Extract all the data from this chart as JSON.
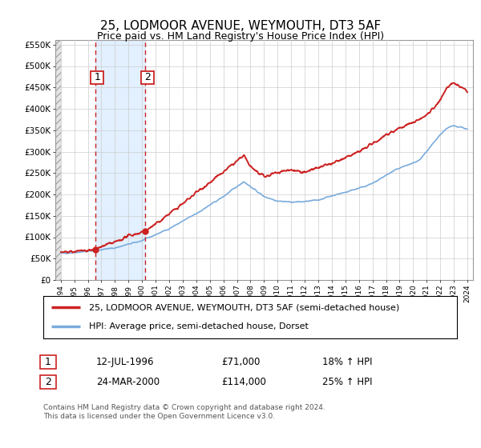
{
  "title": "25, LODMOOR AVENUE, WEYMOUTH, DT3 5AF",
  "subtitle": "Price paid vs. HM Land Registry's House Price Index (HPI)",
  "ylim": [
    0,
    560000
  ],
  "yticks": [
    0,
    50000,
    100000,
    150000,
    200000,
    250000,
    300000,
    350000,
    400000,
    450000,
    500000,
    550000
  ],
  "ytick_labels": [
    "£0",
    "£50K",
    "£100K",
    "£150K",
    "£200K",
    "£250K",
    "£300K",
    "£350K",
    "£400K",
    "£450K",
    "£500K",
    "£550K"
  ],
  "xlim_start": 1993.6,
  "xlim_end": 2024.4,
  "xticks": [
    1994,
    1995,
    1996,
    1997,
    1998,
    1999,
    2000,
    2001,
    2002,
    2003,
    2004,
    2005,
    2006,
    2007,
    2008,
    2009,
    2010,
    2011,
    2012,
    2013,
    2014,
    2015,
    2016,
    2017,
    2018,
    2019,
    2020,
    2021,
    2022,
    2023,
    2024
  ],
  "purchase1_year": 1996.53,
  "purchase1_price": 71000,
  "purchase2_year": 2000.23,
  "purchase2_price": 114000,
  "purchase1_date": "12-JUL-1996",
  "purchase1_hpi_pct": "18% ↑ HPI",
  "purchase2_date": "24-MAR-2000",
  "purchase2_hpi_pct": "25% ↑ HPI",
  "line1_color": "#cc2222",
  "line2_color": "#7aacdc",
  "grid_color": "#cccccc",
  "shade_color": "#ddeeff",
  "footer": "Contains HM Land Registry data © Crown copyright and database right 2024.\nThis data is licensed under the Open Government Licence v3.0.",
  "legend1": "25, LODMOOR AVENUE, WEYMOUTH, DT3 5AF (semi-detached house)",
  "legend2": "HPI: Average price, semi-detached house, Dorset",
  "background_color": "#ffffff"
}
